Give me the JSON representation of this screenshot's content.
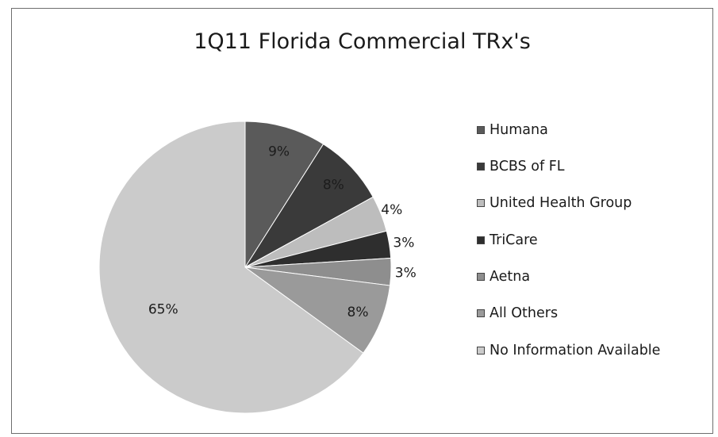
{
  "chart_data": {
    "type": "pie",
    "title": "1Q11 Florida Commercial TRx's",
    "legend_position": "right",
    "slices": [
      {
        "name": "Humana",
        "value": 9,
        "label": "9%",
        "color": "#5a5a5a"
      },
      {
        "name": "BCBS of FL",
        "value": 8,
        "label": "8%",
        "color": "#3a3a3a"
      },
      {
        "name": "United Health Group",
        "value": 4,
        "label": "4%",
        "color": "#bdbdbd"
      },
      {
        "name": "TriCare",
        "value": 3,
        "label": "3%",
        "color": "#2e2e2e"
      },
      {
        "name": "Aetna",
        "value": 3,
        "label": "3%",
        "color": "#8e8e8e"
      },
      {
        "name": "All Others",
        "value": 8,
        "label": "8%",
        "color": "#9a9a9a"
      },
      {
        "name": "No Information Available",
        "value": 65,
        "label": "65%",
        "color": "#cbcbcb"
      }
    ]
  }
}
